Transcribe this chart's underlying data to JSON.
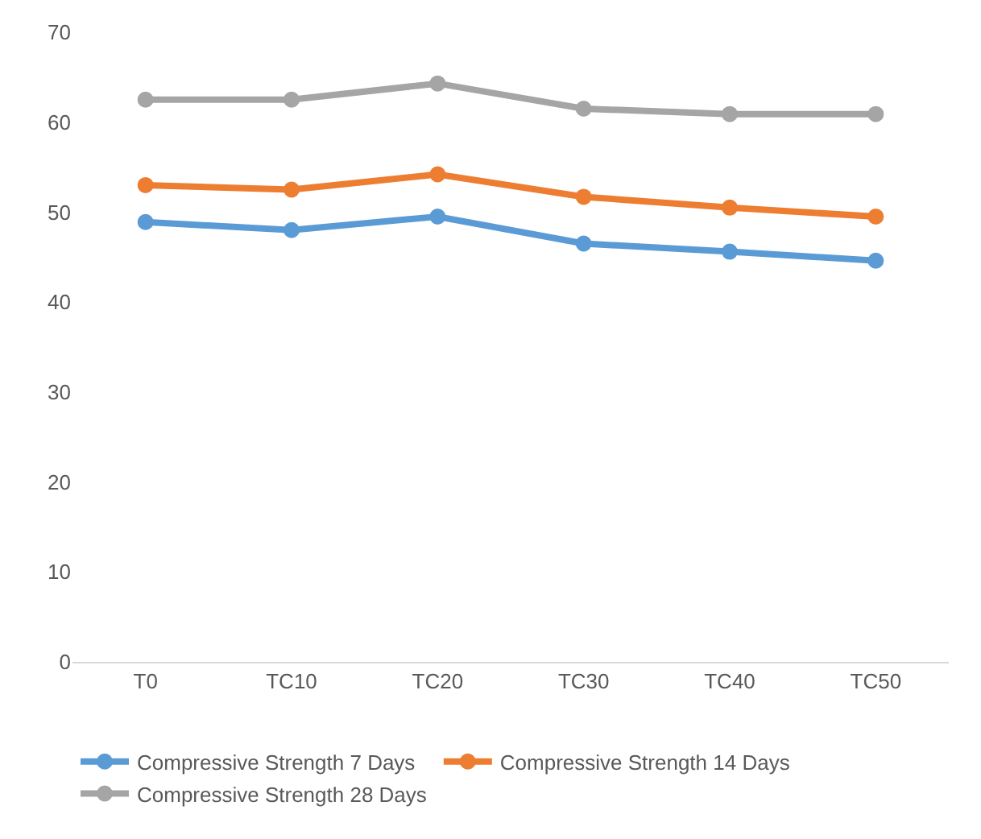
{
  "chart_data": {
    "type": "line",
    "categories": [
      "T0",
      "TC10",
      "TC20",
      "TC30",
      "TC40",
      "TC50"
    ],
    "series": [
      {
        "name": "Compressive Strength 7 Days",
        "color": "#5b9bd5",
        "values": [
          48.9,
          48,
          49.5,
          46.5,
          45.6,
          44.6
        ]
      },
      {
        "name": "Compressive Strength 14 Days",
        "color": "#ed7d31",
        "values": [
          53,
          52.5,
          54.2,
          51.7,
          50.5,
          49.5
        ]
      },
      {
        "name": "Compressive Strength 28 Days",
        "color": "#a5a5a5",
        "values": [
          62.5,
          62.5,
          64.3,
          61.5,
          60.9,
          60.9
        ]
      }
    ],
    "ylim": [
      0,
      70
    ],
    "yticks": [
      0,
      10,
      20,
      30,
      40,
      50,
      60,
      70
    ],
    "grid": false,
    "legend": "bottom",
    "marker": "circle",
    "line_style": "solid"
  }
}
